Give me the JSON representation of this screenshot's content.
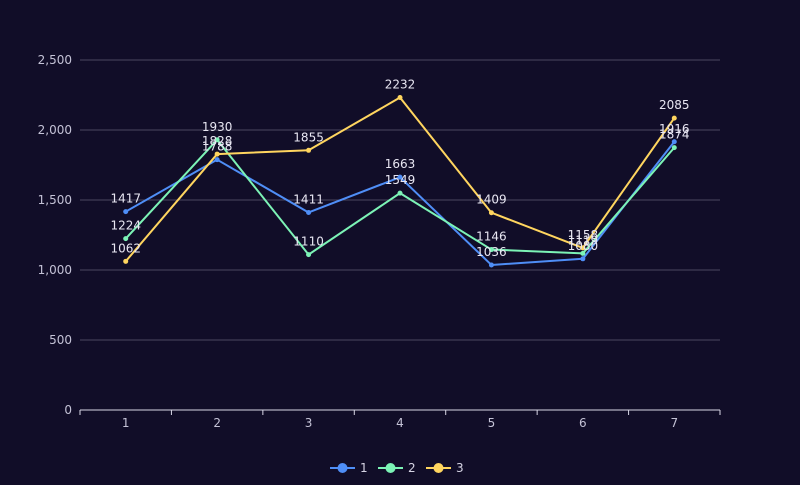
{
  "chart_data": {
    "type": "line",
    "categories": [
      "1",
      "2",
      "3",
      "4",
      "5",
      "6",
      "7"
    ],
    "series": [
      {
        "name": "1",
        "color": "#4f8ef7",
        "values": [
          1417,
          1788,
          1411,
          1663,
          1036,
          1080,
          1916
        ]
      },
      {
        "name": "2",
        "color": "#7cf3b6",
        "values": [
          1224,
          1930,
          1110,
          1549,
          1146,
          1119,
          1874
        ]
      },
      {
        "name": "3",
        "color": "#ffd55f",
        "values": [
          1062,
          1828,
          1855,
          2232,
          1409,
          1158,
          2085
        ]
      }
    ],
    "y_ticks": [
      "0",
      "500",
      "1,000",
      "1,500",
      "2,000",
      "2,500"
    ],
    "ylim": [
      0,
      2500
    ],
    "grid": true,
    "legend_position": "bottom-center",
    "title": "",
    "xlabel": "",
    "ylabel": ""
  }
}
